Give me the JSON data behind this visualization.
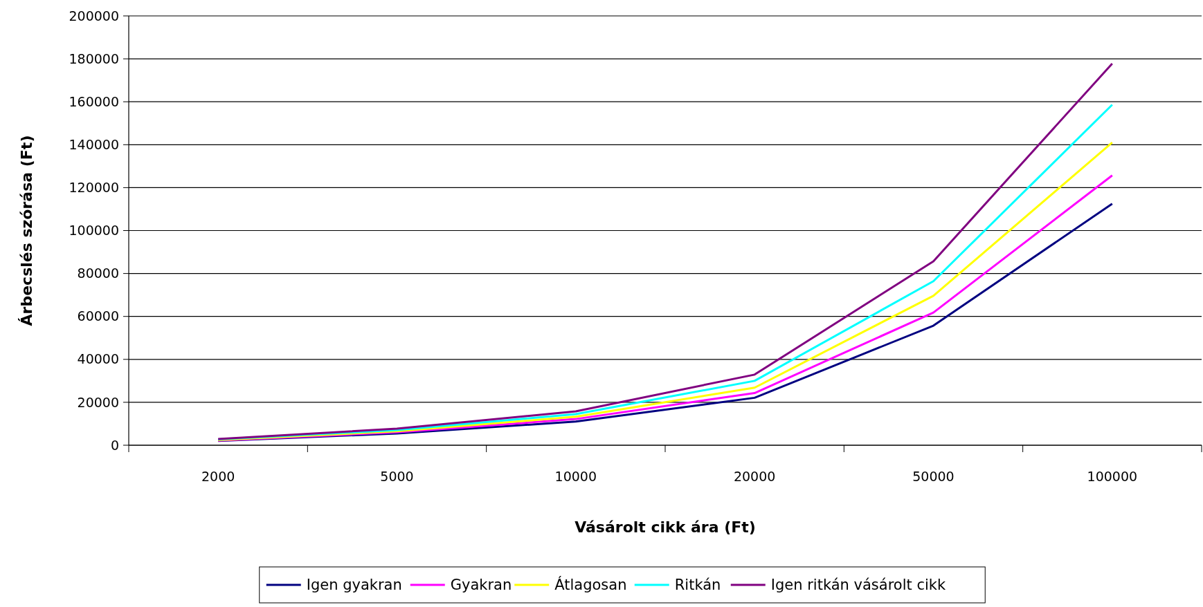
{
  "chart_data": {
    "type": "line",
    "xlabel": "Vásárolt cikk ára (Ft)",
    "ylabel": "Árbecslés szórása (Ft)",
    "categories": [
      "2000",
      "5000",
      "10000",
      "20000",
      "50000",
      "100000"
    ],
    "series": [
      {
        "name": "Igen gyakran",
        "color": "#000080",
        "values": [
          2000,
          5500,
          11000,
          22100,
          55700,
          112500
        ]
      },
      {
        "name": "Gyakran",
        "color": "#ff00ff",
        "values": [
          2200,
          6000,
          12200,
          24300,
          61800,
          125700
        ]
      },
      {
        "name": "Átlagosan",
        "color": "#ffff00",
        "values": [
          2400,
          6500,
          13300,
          26800,
          69600,
          141000
        ]
      },
      {
        "name": "Ritkán",
        "color": "#00ffff",
        "values": [
          2700,
          7100,
          14500,
          30000,
          76400,
          158600
        ]
      },
      {
        "name": "Igen ritkán vásárolt cikk",
        "color": "#800080",
        "values": [
          2900,
          7700,
          15800,
          32900,
          85700,
          177800
        ]
      }
    ],
    "ylim": [
      0,
      200000
    ],
    "yticks": [
      0,
      20000,
      40000,
      60000,
      80000,
      100000,
      120000,
      140000,
      160000,
      180000,
      200000
    ],
    "grid": "y",
    "legend": "bottom",
    "marker": "none",
    "line_style": "solid"
  }
}
